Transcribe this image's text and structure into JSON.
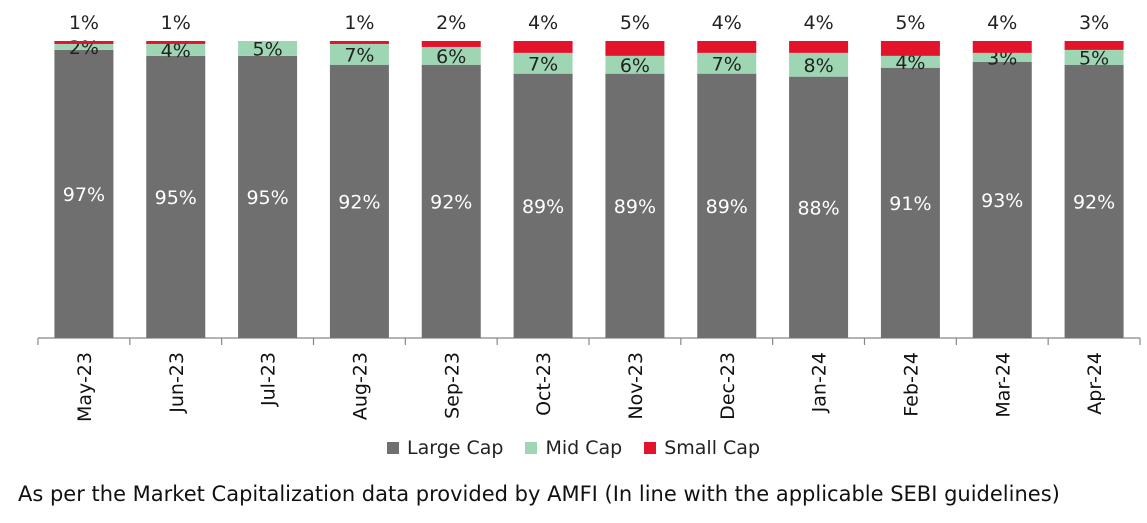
{
  "chart_data": {
    "type": "bar",
    "stacked": true,
    "categories": [
      "May-23",
      "Jun-23",
      "Jul-23",
      "Aug-23",
      "Sep-23",
      "Oct-23",
      "Nov-23",
      "Dec-23",
      "Jan-24",
      "Feb-24",
      "Mar-24",
      "Apr-24"
    ],
    "series": [
      {
        "name": "Large Cap",
        "color": "#706f6f",
        "values": [
          97,
          95,
          95,
          92,
          92,
          89,
          89,
          89,
          88,
          91,
          93,
          92
        ],
        "labels": [
          "97%",
          "95%",
          "95%",
          "92%",
          "92%",
          "89%",
          "89%",
          "89%",
          "88%",
          "91%",
          "93%",
          "92%"
        ]
      },
      {
        "name": "Mid Cap",
        "color": "#9ed6b4",
        "values": [
          2,
          4,
          5,
          7,
          6,
          7,
          6,
          7,
          8,
          4,
          3,
          5
        ],
        "labels": [
          "2%",
          "4%",
          "5%",
          "7%",
          "6%",
          "7%",
          "6%",
          "7%",
          "8%",
          "4%",
          "3%",
          "5%"
        ]
      },
      {
        "name": "Small Cap",
        "color": "#e3132c",
        "values": [
          1,
          1,
          0,
          1,
          2,
          4,
          5,
          4,
          4,
          5,
          4,
          3
        ],
        "labels": [
          "1%",
          "1%",
          "",
          "1%",
          "2%",
          "4%",
          "5%",
          "4%",
          "4%",
          "5%",
          "4%",
          "3%"
        ]
      }
    ],
    "ylim": [
      0,
      100
    ],
    "grid": false,
    "legend_position": "bottom"
  },
  "footnote": "As per the Market Capitalization data provided by AMFI (In line with the applicable SEBI guidelines)"
}
